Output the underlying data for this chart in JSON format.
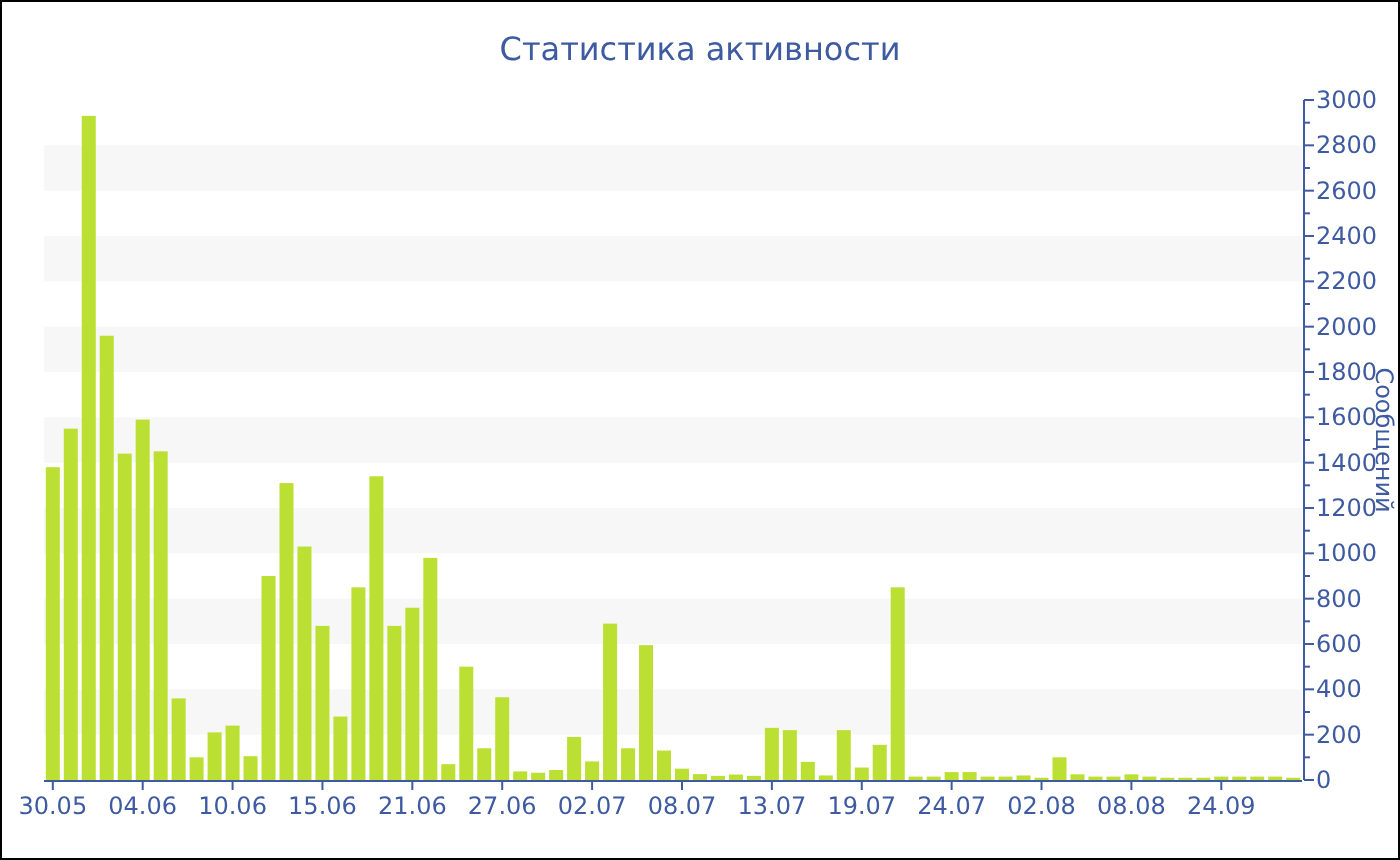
{
  "chart_data": {
    "type": "bar",
    "title": "Статистика активности",
    "ylabel": "Сообщений",
    "categories": [
      "30.05",
      null,
      null,
      null,
      null,
      "04.06",
      null,
      null,
      null,
      null,
      "10.06",
      null,
      null,
      null,
      null,
      "15.06",
      null,
      null,
      null,
      null,
      "21.06",
      null,
      null,
      null,
      null,
      "27.06",
      null,
      null,
      null,
      null,
      "02.07",
      null,
      null,
      null,
      null,
      "08.07",
      null,
      null,
      null,
      null,
      "13.07",
      null,
      null,
      null,
      null,
      "19.07",
      null,
      null,
      null,
      null,
      "24.07",
      null,
      null,
      null,
      null,
      "02.08",
      null,
      null,
      null,
      null,
      "08.08",
      null,
      null,
      null,
      null,
      "24.09",
      null,
      null,
      null,
      null
    ],
    "values": [
      1380,
      1550,
      2930,
      1960,
      1440,
      1590,
      1450,
      360,
      100,
      210,
      240,
      105,
      900,
      1310,
      1030,
      680,
      280,
      850,
      1340,
      680,
      760,
      980,
      70,
      500,
      140,
      365,
      38,
      32,
      44,
      190,
      82,
      690,
      140,
      595,
      130,
      50,
      26,
      18,
      24,
      18,
      230,
      220,
      80,
      20,
      220,
      55,
      155,
      850,
      15,
      15,
      35,
      35,
      15,
      15,
      20,
      10,
      100,
      25,
      15,
      15,
      25,
      15,
      10,
      10,
      10,
      15,
      15,
      15,
      15,
      10
    ],
    "color": "#bbe033",
    "ylim": [
      0,
      3000
    ],
    "yticks": [
      0,
      {
        "value": 100,
        "label": null
      },
      200,
      {
        "value": 300,
        "label": null
      },
      400,
      {
        "value": 500,
        "label": null
      },
      600,
      {
        "value": 700,
        "label": null
      },
      800,
      {
        "value": 900,
        "label": null
      },
      1000,
      {
        "value": 1100,
        "label": null
      },
      1200,
      {
        "value": 1300,
        "label": null
      },
      1400,
      {
        "value": 1500,
        "label": null
      },
      1600,
      {
        "value": 1700,
        "label": null
      },
      1800,
      {
        "value": 1900,
        "label": null
      },
      2000,
      {
        "value": 2100,
        "label": null
      },
      2200,
      {
        "value": 2300,
        "label": null
      },
      2400,
      {
        "value": 2500,
        "label": null
      },
      2600,
      {
        "value": 2700,
        "label": null
      },
      2800,
      {
        "value": 2900,
        "label": null
      },
      3000
    ],
    "bands": [
      {
        "axis": "y",
        "from": 200,
        "to": 400,
        "color": "#f7f7f7"
      },
      {
        "axis": "y",
        "from": 600,
        "to": 800,
        "color": "#f7f7f7"
      },
      {
        "axis": "y",
        "from": 1000,
        "to": 1200,
        "color": "#f7f7f7"
      },
      {
        "axis": "y",
        "from": 1400,
        "to": 1600,
        "color": "#f7f7f7"
      },
      {
        "axis": "y",
        "from": 1800,
        "to": 2000,
        "color": "#f7f7f7"
      },
      {
        "axis": "y",
        "from": 2200,
        "to": 2400,
        "color": "#f7f7f7"
      },
      {
        "axis": "y",
        "from": 2600,
        "to": 2800,
        "color": "#f7f7f7"
      }
    ],
    "grid": false
  }
}
